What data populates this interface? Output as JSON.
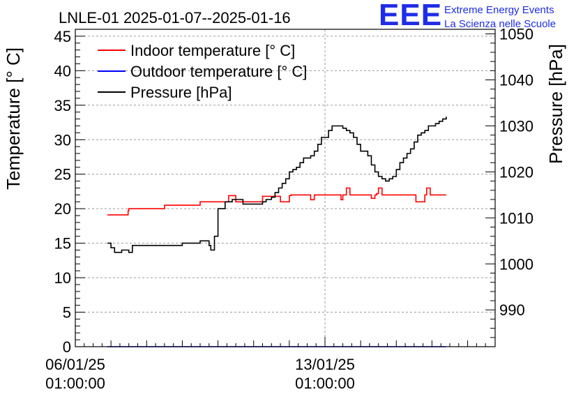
{
  "chart_data": {
    "type": "line",
    "title": "LNLE-01 2025-01-07--2025-01-16",
    "ylabel_left": "Temperature [° C]",
    "ylabel_right": "Pressure [hPa]",
    "ylim_left": [
      0,
      46
    ],
    "ylim_right": [
      982,
      1051
    ],
    "yticks_left": [
      "0",
      "5",
      "10",
      "15",
      "20",
      "25",
      "30",
      "35",
      "40",
      "45"
    ],
    "yticks_right": [
      "990",
      "1000",
      "1010",
      "1020",
      "1030",
      "1040",
      "1050"
    ],
    "xticks": [
      {
        "date": "06/01/25",
        "time": "01:00:00",
        "day": 0
      },
      {
        "date": "13/01/25",
        "time": "01:00:00",
        "day": 7
      }
    ],
    "xlim_days": [
      0,
      11.5
    ],
    "grid": true,
    "legend_position": "top-left",
    "legend": [
      {
        "label": "Indoor temperature [° C]",
        "color": "#ff0000"
      },
      {
        "label": "Outdoor temperature [° C]",
        "color": "#0000ff"
      },
      {
        "label": "Pressure [hPa]",
        "color": "#000000"
      }
    ],
    "series": [
      {
        "name": "Indoor temperature [° C]",
        "color": "#ff0000",
        "axis": "left",
        "x": [
          0.9,
          1.48,
          1.48,
          1.5,
          2.5,
          3.5,
          4.3,
          4.3,
          4.4,
          4.5,
          4.5,
          5.0,
          5.25,
          5.25,
          5.3,
          5.75,
          6.0,
          6.0,
          6.05,
          6.55,
          6.6,
          6.65,
          6.7,
          7.4,
          7.45,
          7.5,
          7.55,
          7.6,
          7.65,
          7.7,
          7.75,
          8.25,
          8.3,
          8.4,
          8.45,
          8.5,
          8.55,
          8.6,
          9.0,
          9.01,
          9.5,
          9.55,
          9.7,
          9.75,
          9.8,
          9.85,
          9.95,
          10.0,
          10.4
        ],
        "values": [
          19.1,
          19.1,
          19.7,
          20.0,
          20.5,
          21.0,
          21.0,
          21.9,
          21.9,
          21.9,
          21.0,
          21.0,
          21.0,
          21.8,
          21.8,
          21.0,
          21.0,
          21.9,
          22.0,
          22.0,
          21.3,
          21.3,
          22.0,
          22.0,
          21.3,
          22.0,
          22.0,
          23.0,
          23.0,
          22.0,
          22.0,
          22.0,
          21.5,
          22.0,
          22.2,
          23.0,
          23.0,
          22.0,
          22.0,
          22.0,
          22.0,
          21.0,
          21.0,
          21.0,
          22.0,
          23.0,
          22.0,
          22.0,
          22.0
        ]
      },
      {
        "name": "Outdoor temperature [° C]",
        "color": "#0000ff",
        "axis": "left",
        "x": [
          0.9,
          10.4
        ],
        "values": [
          0.0,
          0.0
        ]
      },
      {
        "name": "Pressure [hPa]",
        "color": "#000000",
        "axis": "right",
        "x": [
          0.9,
          1.0,
          1.1,
          1.2,
          1.3,
          1.4,
          1.5,
          1.6,
          2.0,
          3.0,
          3.5,
          3.75,
          3.8,
          3.9,
          4.0,
          4.2,
          4.4,
          4.7,
          5.0,
          5.25,
          5.35,
          5.5,
          5.6,
          5.7,
          5.8,
          5.9,
          6.0,
          6.1,
          6.2,
          6.3,
          6.4,
          6.5,
          6.6,
          6.7,
          6.8,
          6.9,
          7.0,
          7.1,
          7.2,
          7.3,
          7.4,
          7.5,
          7.6,
          7.7,
          7.8,
          7.9,
          8.0,
          8.1,
          8.2,
          8.3,
          8.4,
          8.5,
          8.6,
          8.7,
          8.8,
          8.9,
          9.0,
          9.1,
          9.2,
          9.3,
          9.4,
          9.5,
          9.6,
          9.7,
          9.8,
          9.9,
          10.0,
          10.1,
          10.2,
          10.3,
          10.4
        ],
        "values": [
          1004.5,
          1003.5,
          1002.5,
          1002.5,
          1003.0,
          1003.0,
          1002.5,
          1004.0,
          1004.0,
          1004.5,
          1005.0,
          1004.0,
          1003.0,
          1006.0,
          1012.0,
          1013.5,
          1014.0,
          1013.0,
          1013.0,
          1013.5,
          1014.0,
          1014.5,
          1015.5,
          1016.5,
          1017.5,
          1018.5,
          1020.0,
          1020.5,
          1021.0,
          1022.0,
          1023.0,
          1023.0,
          1023.5,
          1024.5,
          1026.0,
          1027.5,
          1027.5,
          1029.0,
          1030.0,
          1030.0,
          1030.0,
          1029.5,
          1029.0,
          1028.5,
          1027.5,
          1026.0,
          1024.5,
          1024.5,
          1023.5,
          1021.5,
          1020.0,
          1019.0,
          1018.5,
          1018.0,
          1018.5,
          1019.0,
          1020.5,
          1022.0,
          1023.0,
          1024.0,
          1025.0,
          1026.5,
          1028.0,
          1028.5,
          1029.0,
          1030.0,
          1030.0,
          1030.5,
          1031.0,
          1031.5,
          1032.0
        ]
      }
    ]
  },
  "logo": {
    "mark": "EEE",
    "line1": "Extreme Energy Events",
    "line2": "La Scienza nelle Scuole",
    "color": "#1f2de8"
  }
}
